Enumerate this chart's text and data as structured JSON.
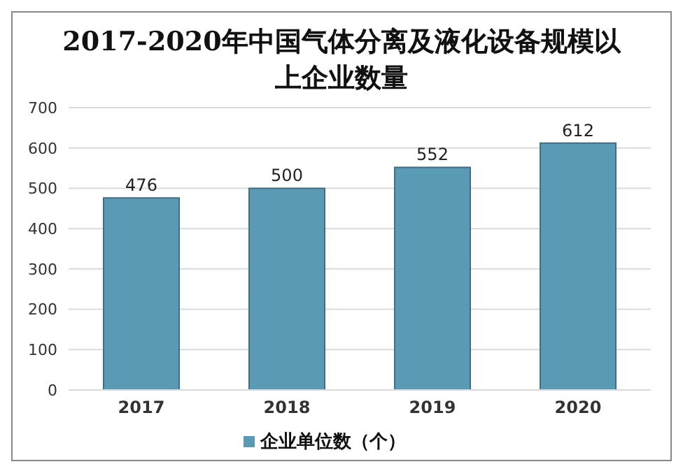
{
  "chart_data": {
    "type": "bar",
    "title": "2017-2020年中国气体分离及液化设备规模以上企业数量",
    "categories": [
      "2017",
      "2018",
      "2019",
      "2020"
    ],
    "series": [
      {
        "name": "企业单位数（个）",
        "color": "#5b9ab5",
        "values": [
          476,
          500,
          552,
          612
        ]
      }
    ],
    "ylim": [
      0,
      700
    ],
    "yticks": [
      0,
      100,
      200,
      300,
      400,
      500,
      600,
      700
    ],
    "grid": "y",
    "legend": "bottom",
    "data_labels": true
  }
}
